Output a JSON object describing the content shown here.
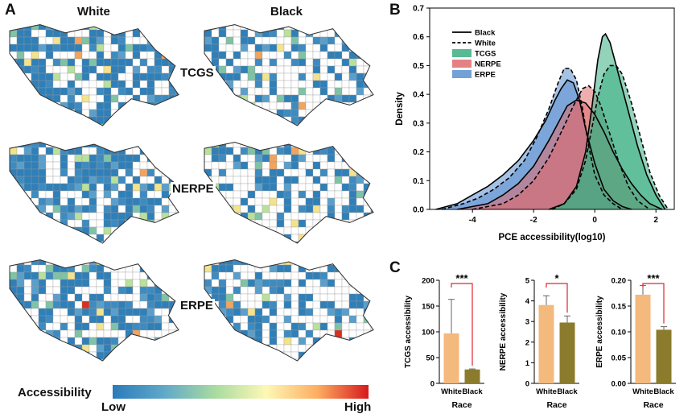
{
  "panel_a": {
    "letter": "A",
    "columns": [
      "White",
      "Black"
    ],
    "rows": [
      "TCGS",
      "NERPE",
      "ERPE"
    ],
    "colorbar": {
      "title": "Accessibility",
      "low": "Low",
      "high": "High",
      "colors": [
        "#2b7bba",
        "#5fa8c9",
        "#a9dba0",
        "#fdf8b5",
        "#fdae61",
        "#d7191c"
      ]
    },
    "map_fill_colors": [
      "#2f7fb8",
      "#3d8bc0",
      "#5a9fcb",
      "#7fc3a6",
      "#b9e09c",
      "#f4e38d",
      "#f2a35e",
      "#d7301f"
    ]
  },
  "panel_b": {
    "letter": "B",
    "chart_data": {
      "type": "area",
      "xlabel": "PCE accessibility(log10)",
      "ylabel": "Density",
      "xlim": [
        -5.4,
        2.6
      ],
      "ylim": [
        0,
        0.7
      ],
      "xticks": [
        -4,
        -2,
        0,
        2
      ],
      "yticks": [
        0,
        0.1,
        0.2,
        0.3,
        0.4,
        0.5,
        0.6,
        0.7
      ],
      "legend": [
        "Black",
        "White",
        "TCGS",
        "NERPE",
        "ERPE"
      ],
      "legend_position": "top-left",
      "colors": {
        "TCGS": "#3aae83",
        "NERPE": "#df6b70",
        "ERPE": "#5b8fd0"
      },
      "series": [
        {
          "name": "ERPE",
          "race": "Black",
          "x": [
            -5.2,
            -4.5,
            -4.0,
            -3.5,
            -3.0,
            -2.5,
            -2.0,
            -1.6,
            -1.3,
            -1.1,
            -0.9,
            -0.7,
            -0.5,
            -0.3,
            0.0,
            0.3,
            0.6,
            0.9,
            1.2
          ],
          "y": [
            0,
            0.02,
            0.05,
            0.08,
            0.12,
            0.17,
            0.24,
            0.31,
            0.38,
            0.42,
            0.45,
            0.44,
            0.38,
            0.28,
            0.16,
            0.07,
            0.03,
            0.01,
            0
          ]
        },
        {
          "name": "ERPE",
          "race": "White",
          "x": [
            -5.0,
            -4.3,
            -3.8,
            -3.3,
            -2.8,
            -2.3,
            -1.9,
            -1.5,
            -1.2,
            -1.0,
            -0.8,
            -0.6,
            -0.4,
            -0.2,
            0.0,
            0.3,
            0.6,
            0.9
          ],
          "y": [
            0,
            0.02,
            0.04,
            0.07,
            0.11,
            0.17,
            0.25,
            0.35,
            0.44,
            0.49,
            0.49,
            0.45,
            0.35,
            0.22,
            0.12,
            0.05,
            0.02,
            0
          ]
        },
        {
          "name": "NERPE",
          "race": "Black",
          "x": [
            -4.5,
            -3.5,
            -3.0,
            -2.5,
            -2.0,
            -1.5,
            -1.2,
            -0.9,
            -0.6,
            -0.3,
            0.0,
            0.3,
            0.6,
            0.9,
            1.2,
            1.5,
            1.8,
            2.2
          ],
          "y": [
            0,
            0.02,
            0.05,
            0.09,
            0.15,
            0.24,
            0.3,
            0.36,
            0.38,
            0.37,
            0.33,
            0.27,
            0.2,
            0.14,
            0.09,
            0.05,
            0.02,
            0
          ]
        },
        {
          "name": "NERPE",
          "race": "White",
          "x": [
            -4.0,
            -3.0,
            -2.5,
            -2.0,
            -1.5,
            -1.0,
            -0.7,
            -0.4,
            -0.2,
            0.0,
            0.2,
            0.5,
            0.8,
            1.1,
            1.4,
            1.8
          ],
          "y": [
            0,
            0.02,
            0.05,
            0.1,
            0.18,
            0.29,
            0.36,
            0.42,
            0.43,
            0.41,
            0.36,
            0.26,
            0.16,
            0.08,
            0.03,
            0
          ]
        },
        {
          "name": "TCGS",
          "race": "Black",
          "x": [
            -1.5,
            -1.0,
            -0.6,
            -0.3,
            -0.1,
            0.1,
            0.25,
            0.35,
            0.5,
            0.8,
            1.1,
            1.4,
            1.7,
            2.0,
            2.3
          ],
          "y": [
            0,
            0.02,
            0.08,
            0.2,
            0.35,
            0.52,
            0.6,
            0.61,
            0.58,
            0.46,
            0.34,
            0.22,
            0.12,
            0.05,
            0
          ]
        },
        {
          "name": "TCGS",
          "race": "White",
          "x": [
            -1.4,
            -1.0,
            -0.6,
            -0.3,
            -0.1,
            0.1,
            0.3,
            0.5,
            0.7,
            0.9,
            1.2,
            1.5,
            1.8,
            2.1,
            2.4
          ],
          "y": [
            0,
            0.02,
            0.07,
            0.17,
            0.28,
            0.39,
            0.47,
            0.5,
            0.5,
            0.47,
            0.37,
            0.25,
            0.13,
            0.05,
            0
          ]
        }
      ]
    }
  },
  "panel_c": {
    "letter": "C",
    "chart_data": [
      {
        "type": "bar",
        "ylabel": "TCGS accessibility",
        "xlabel": "Race",
        "categories": [
          "White",
          "Black"
        ],
        "values": [
          97,
          27
        ],
        "error": [
          66,
          1
        ],
        "ylim": [
          0,
          200
        ],
        "yticks": [
          "0",
          "50",
          "100",
          "150",
          "200"
        ],
        "significance": "***"
      },
      {
        "type": "bar",
        "ylabel": "NERPE accessibility",
        "xlabel": "Race",
        "categories": [
          "White",
          "Black"
        ],
        "values": [
          3.8,
          2.95
        ],
        "error": [
          0.45,
          0.32
        ],
        "ylim": [
          0,
          5
        ],
        "yticks": [
          "0",
          "1",
          "2",
          "3",
          "4",
          "5"
        ],
        "significance": "*"
      },
      {
        "type": "bar",
        "ylabel": "ERPE accessibility",
        "xlabel": "Race",
        "categories": [
          "White",
          "Black"
        ],
        "values": [
          0.172,
          0.104
        ],
        "error": [
          0.018,
          0.006
        ],
        "ylim": [
          0,
          0.2
        ],
        "yticks": [
          "0.00",
          "0.05",
          "0.10",
          "0.15",
          "0.20"
        ],
        "significance": "***"
      }
    ],
    "bar_colors": {
      "White": "#f4b97c",
      "Black": "#8b7b2c"
    },
    "sig_color": "#e0262f"
  }
}
